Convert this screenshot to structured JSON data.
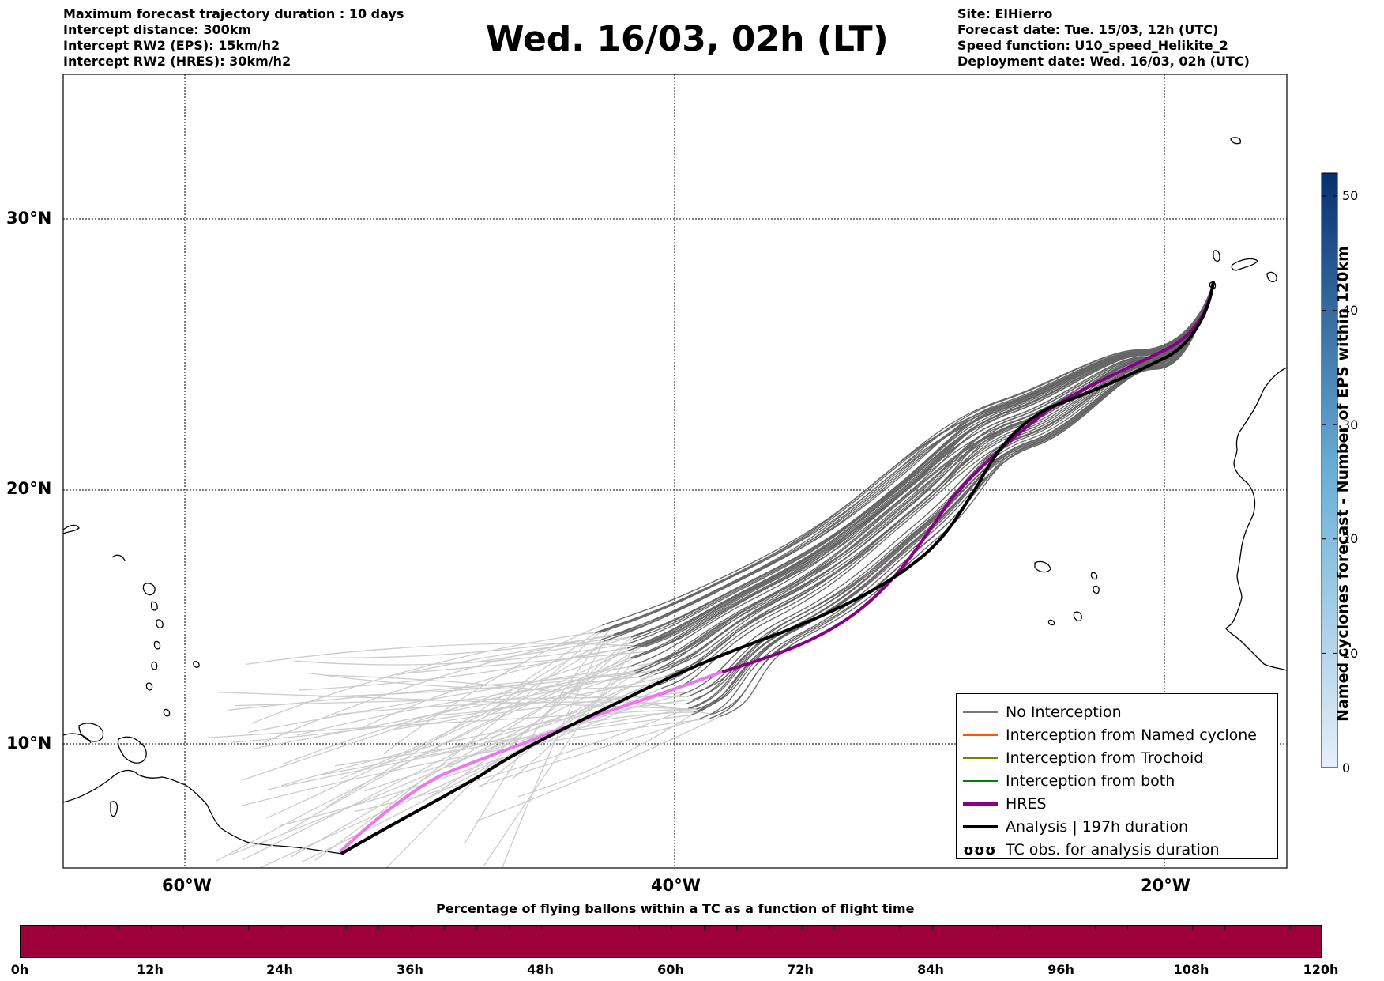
{
  "header": {
    "left_lines": [
      "Maximum forecast trajectory duration : 10 days",
      "Intercept distance: 300km",
      "Intercept RW2 (EPS):  15km/h2",
      "Intercept RW2 (HRES): 30km/h2"
    ],
    "title": "Wed. 16/03, 02h (LT)",
    "right_lines": [
      "Site: ElHierro",
      "Forecast date: Tue. 15/03, 12h (UTC)",
      "Speed function: U10_speed_Helikite_2",
      "Deployment date: Wed. 16/03, 02h (UTC)"
    ]
  },
  "map": {
    "lat_labels": [
      "30°N",
      "20°N",
      "10°N"
    ],
    "lon_labels": [
      "60°W",
      "40°W",
      "20°W"
    ],
    "grid": "dotted",
    "colors": {
      "no_interception_recent": "#666666",
      "no_interception_later": "#cccccc",
      "hres": "#880088",
      "hres_later": "#ee77ee",
      "analysis": "#000000",
      "named_cyclone": "#ff5500",
      "trochoid": "#808000",
      "both": "#008000"
    }
  },
  "legend": {
    "items": [
      {
        "label": "No Interception",
        "color": "#777777",
        "width": 1.5
      },
      {
        "label": "Interception from Named cyclone",
        "color": "#ff5500",
        "width": 1.5
      },
      {
        "label": "Interception from Trochoid",
        "color": "#808000",
        "width": 1.5
      },
      {
        "label": "Interception from both",
        "color": "#008000",
        "width": 1.5
      },
      {
        "label": "HRES",
        "color": "#880088",
        "width": 4
      },
      {
        "label": "Analysis | 197h duration",
        "color": "#000000",
        "width": 4
      }
    ],
    "tc_obs_symbol": "ʊʊʊ",
    "tc_obs_label": "TC obs. for analysis duration"
  },
  "colorbar": {
    "title": "Named cyclones forecast - Number of EPS within 120km",
    "ticks": [
      "0",
      "10",
      "20",
      "30",
      "40",
      "50"
    ],
    "range": [
      0,
      52
    ],
    "color_low": "#e6eff9",
    "color_high": "#083070"
  },
  "time_bar": {
    "title": "Percentage of flying ballons within a TC as a function of flight time",
    "ticks": [
      "0h",
      "12h",
      "24h",
      "36h",
      "48h",
      "60h",
      "72h",
      "84h",
      "96h",
      "108h",
      "120h"
    ],
    "color": "#9e003a"
  }
}
